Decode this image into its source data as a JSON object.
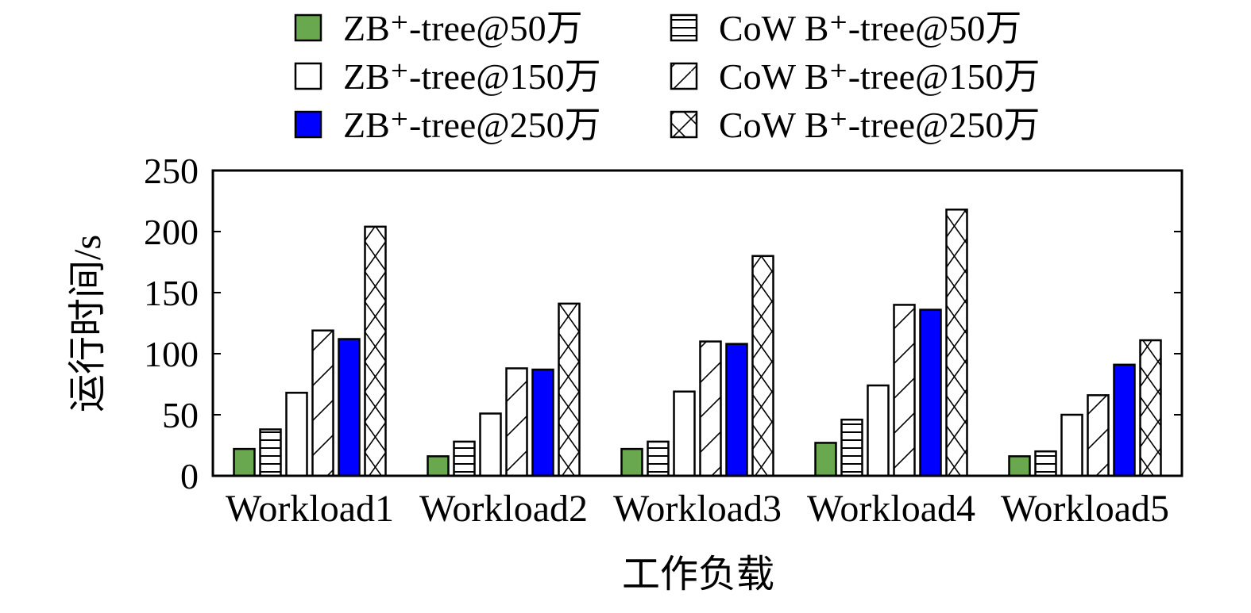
{
  "chart_data": {
    "type": "bar",
    "title": "",
    "xlabel": "工作负载",
    "ylabel": "运行时间/s",
    "ylim": [
      0,
      250
    ],
    "yticks": [
      "0",
      "50",
      "100",
      "150",
      "200",
      "250"
    ],
    "grid": false,
    "legend_position": "top",
    "categories": [
      "Workload1",
      "Workload2",
      "Workload3",
      "Workload4",
      "Workload5"
    ],
    "series": [
      {
        "name": "ZB⁺-tree@50万",
        "style": "solid",
        "color": "#6aa84f",
        "values": [
          22,
          16,
          22,
          27,
          16
        ]
      },
      {
        "name": "CoW B⁺-tree@50万",
        "style": "horizontal-lines",
        "color": "#ffffff",
        "values": [
          38,
          28,
          28,
          46,
          20
        ]
      },
      {
        "name": "ZB⁺-tree@150万",
        "style": "empty",
        "color": "#ffffff",
        "values": [
          68,
          51,
          69,
          74,
          50
        ]
      },
      {
        "name": "CoW B⁺-tree@150万",
        "style": "diagonal-lines",
        "color": "#ffffff",
        "values": [
          119,
          88,
          110,
          140,
          66
        ]
      },
      {
        "name": "ZB⁺-tree@250万",
        "style": "solid",
        "color": "#0000ff",
        "values": [
          112,
          87,
          108,
          136,
          91
        ]
      },
      {
        "name": "CoW B⁺-tree@250万",
        "style": "cross-hatch",
        "color": "#ffffff",
        "values": [
          204,
          141,
          180,
          218,
          111
        ]
      }
    ]
  }
}
